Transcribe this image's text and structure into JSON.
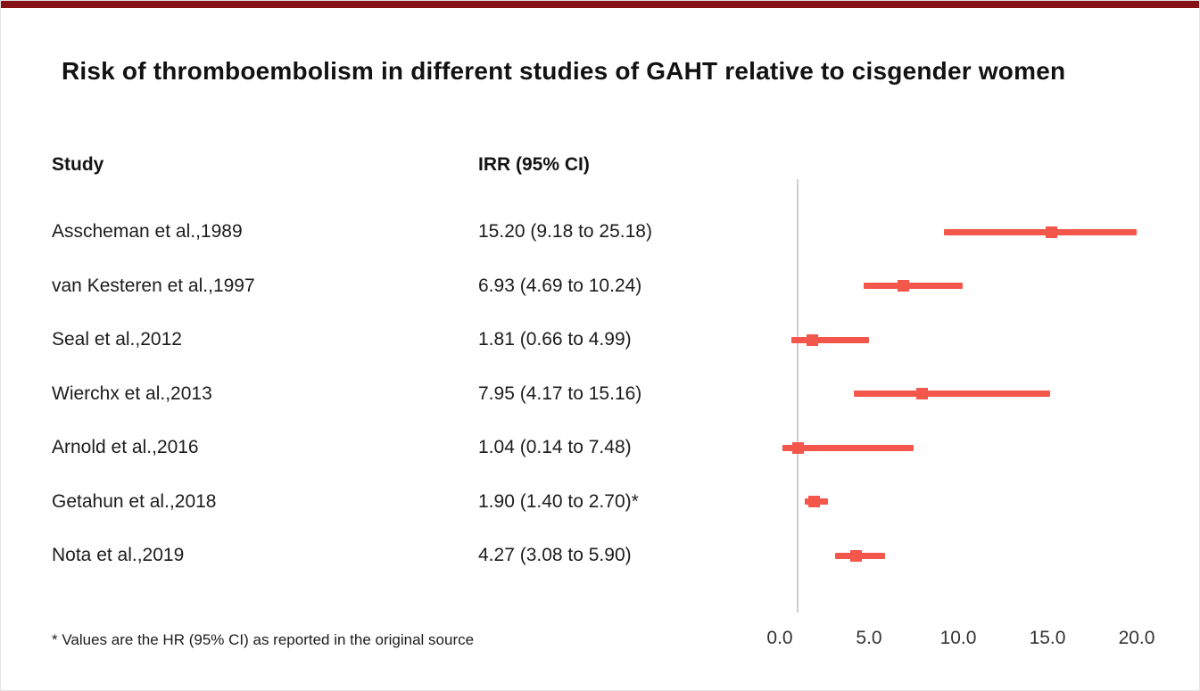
{
  "page": {
    "title": "Risk of thromboembolism in different studies of GAHT relative to cisgender women",
    "footnote": "* Values are the HR (95% CI) as reported in the original source",
    "accent_color": "#f3564a",
    "topbar_color": "#871216",
    "reference_line_color": "#cfcfcf"
  },
  "table": {
    "col_study": "Study",
    "col_value": "IRR (95% CI)"
  },
  "chart_data": {
    "type": "forest",
    "title": "Risk of thromboembolism in different studies of GAHT relative to cisgender women",
    "xlabel": "",
    "ylabel": "",
    "x_axis": {
      "min": 0,
      "max": 20,
      "ticks": [
        "0.0",
        "5.0",
        "10.0",
        "15.0",
        "20.0"
      ],
      "tick_values": [
        0,
        5,
        10,
        15,
        20
      ],
      "reference_line": 1.0,
      "grid": false
    },
    "legend": "none",
    "studies": [
      {
        "label": "Asscheman et al.,1989",
        "display": "15.20 (9.18 to 25.18)",
        "estimate": 15.2,
        "low": 9.18,
        "high": 25.18
      },
      {
        "label": "van Kesteren et al.,1997",
        "display": "6.93 (4.69 to 10.24)",
        "estimate": 6.93,
        "low": 4.69,
        "high": 10.24
      },
      {
        "label": "Seal et al.,2012",
        "display": "1.81 (0.66 to 4.99)",
        "estimate": 1.81,
        "low": 0.66,
        "high": 4.99
      },
      {
        "label": "Wierchx et al.,2013",
        "display": "7.95 (4.17 to 15.16)",
        "estimate": 7.95,
        "low": 4.17,
        "high": 15.16
      },
      {
        "label": "Arnold et al.,2016",
        "display": "1.04 (0.14 to 7.48)",
        "estimate": 1.04,
        "low": 0.14,
        "high": 7.48
      },
      {
        "label": "Getahun et al.,2018",
        "display": "1.90 (1.40 to 2.70)*",
        "estimate": 1.9,
        "low": 1.4,
        "high": 2.7
      },
      {
        "label": "Nota et al.,2019",
        "display": "4.27 (3.08 to 5.90)",
        "estimate": 4.27,
        "low": 3.08,
        "high": 5.9
      }
    ]
  }
}
